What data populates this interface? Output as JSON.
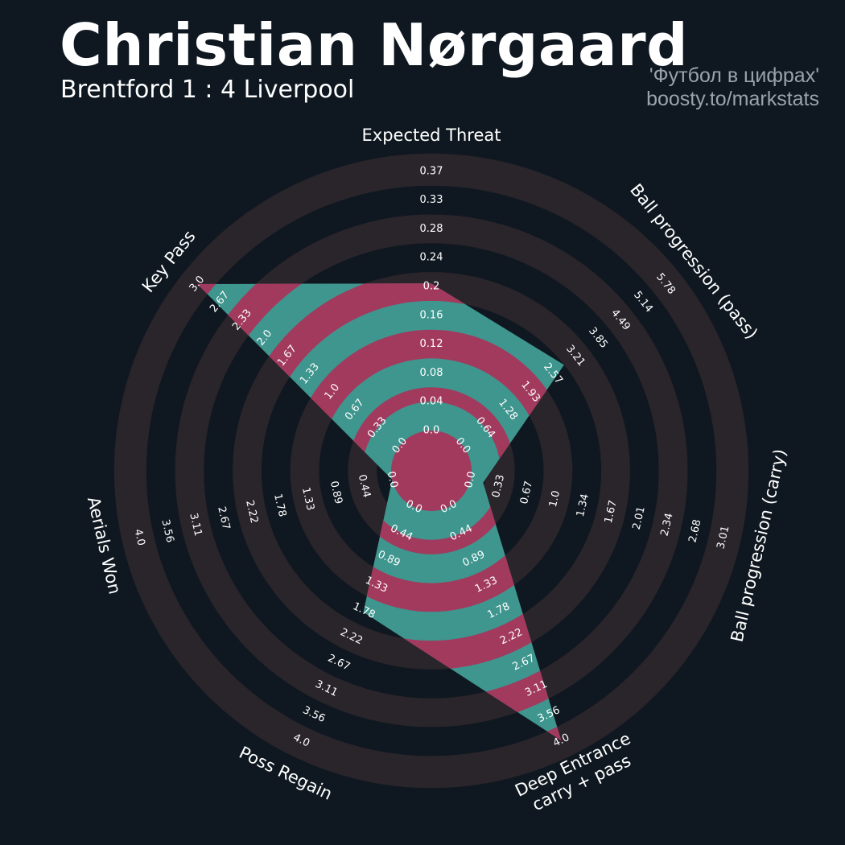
{
  "header": {
    "title": "Christian Nørgaard",
    "subtitle": "Brentford 1 : 4 Liverpool",
    "credit_line1": "'Футбол в цифрах'",
    "credit_line2": "boosty.to/markstats"
  },
  "colors": {
    "background": "#0f1820",
    "ring_band": "#2a242b",
    "fill_teal": "#3e968e",
    "fill_magenta": "#a23a5e",
    "text": "#ffffff",
    "credit": "#9aa3ab"
  },
  "chart_data": {
    "type": "radar",
    "title": "Christian Nørgaard",
    "grid": true,
    "axes": [
      {
        "name": "Expected Threat",
        "min": 0.0,
        "max": 0.37,
        "value": 0.21,
        "ticks": [
          "0.0",
          "0.04",
          "0.08",
          "0.12",
          "0.16",
          "0.2",
          "0.24",
          "0.28",
          "0.33",
          "0.37"
        ]
      },
      {
        "name": "Ball progression (pass)",
        "min": 0.0,
        "max": 5.78,
        "value": 2.89,
        "ticks": [
          "0.0",
          "0.64",
          "1.28",
          "1.93",
          "2.57",
          "3.21",
          "3.85",
          "4.49",
          "5.14",
          "5.78"
        ]
      },
      {
        "name": "Ball progression (carry)",
        "min": 0.0,
        "max": 3.01,
        "value": 0.15,
        "ticks": [
          "0.0",
          "0.33",
          "0.67",
          "1.0",
          "1.34",
          "1.67",
          "2.01",
          "2.34",
          "2.68",
          "3.01"
        ]
      },
      {
        "name": "Deep Entrance\ncarry + pass",
        "min": 0.0,
        "max": 4.0,
        "value": 4.0,
        "ticks": [
          "0.0",
          "0.44",
          "0.89",
          "1.33",
          "1.78",
          "2.22",
          "2.67",
          "3.11",
          "3.56",
          "4.0"
        ]
      },
      {
        "name": "Poss Regain",
        "min": 0.0,
        "max": 4.0,
        "value": 1.8,
        "ticks": [
          "0.0",
          "0.44",
          "0.89",
          "1.33",
          "1.78",
          "2.22",
          "2.67",
          "3.11",
          "3.56",
          "4.0"
        ]
      },
      {
        "name": "Aerials Won",
        "min": 0.0,
        "max": 4.0,
        "value": 0.0,
        "ticks": [
          "0.0",
          "0.44",
          "0.89",
          "1.33",
          "1.78",
          "2.22",
          "2.67",
          "3.11",
          "3.56",
          "4.0"
        ]
      },
      {
        "name": "Key Pass",
        "min": 0.0,
        "max": 3.0,
        "value": 3.0,
        "ticks": [
          "0.0",
          "0.33",
          "0.67",
          "1.0",
          "1.33",
          "1.67",
          "2.0",
          "2.33",
          "2.67",
          "3.0"
        ]
      }
    ]
  }
}
